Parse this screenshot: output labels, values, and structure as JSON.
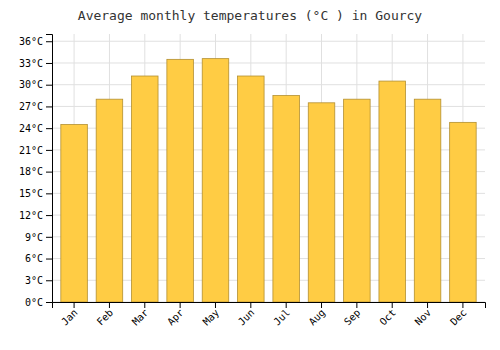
{
  "chart_data": {
    "type": "bar",
    "title": "Average monthly temperatures (°C ) in Gourcy",
    "categories": [
      "Jan",
      "Feb",
      "Mar",
      "Apr",
      "May",
      "Jun",
      "Jul",
      "Aug",
      "Sep",
      "Oct",
      "Nov",
      "Dec"
    ],
    "values": [
      24.5,
      28.0,
      31.2,
      33.5,
      33.6,
      31.2,
      28.5,
      27.5,
      28.0,
      30.5,
      28.0,
      24.8
    ],
    "color": "#FFCC44",
    "ylim": [
      0,
      37
    ],
    "yticks": [
      {
        "value": 0,
        "label": "0°C"
      },
      {
        "value": 3,
        "label": "3°C"
      },
      {
        "value": 6,
        "label": "6°C"
      },
      {
        "value": 9,
        "label": "9°C"
      },
      {
        "value": 12,
        "label": "12°C"
      },
      {
        "value": 15,
        "label": "15°C"
      },
      {
        "value": 18,
        "label": "18°C"
      },
      {
        "value": 21,
        "label": "21°C"
      },
      {
        "value": 24,
        "label": "24°C"
      },
      {
        "value": 27,
        "label": "27°C"
      },
      {
        "value": 30,
        "label": "30°C"
      },
      {
        "value": 33,
        "label": "33°C"
      },
      {
        "value": 36,
        "label": "36°C"
      }
    ],
    "grid": true
  }
}
